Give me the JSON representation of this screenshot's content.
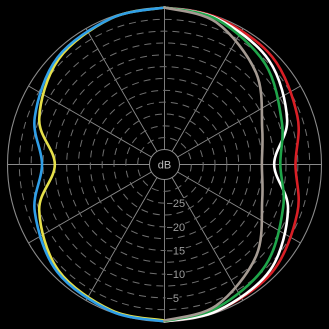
{
  "chart_data": {
    "type": "polar",
    "center_label": "dB",
    "radial_axis": {
      "ticks": [
        -5,
        -10,
        -15,
        -20,
        -25
      ],
      "tick_labels": [
        "−5",
        "−10",
        "−15",
        "−20",
        "−25"
      ],
      "outer_db": 0,
      "inner_db": -30
    },
    "angular_axis": {
      "spoke_step_deg": 30,
      "zero_at": "top",
      "direction": "clockwise"
    },
    "grid": true,
    "series": [
      {
        "side": "left",
        "color": "#e6e04a",
        "points": [
          {
            "angle": 0,
            "db": 0
          },
          {
            "angle": 20,
            "db": -0.3
          },
          {
            "angle": 45,
            "db": -1.6
          },
          {
            "angle": 70,
            "db": -5.0
          },
          {
            "angle": 90,
            "db": -10.0
          },
          {
            "angle": 110,
            "db": -5.0
          },
          {
            "angle": 135,
            "db": -1.5
          },
          {
            "angle": 160,
            "db": -0.4
          },
          {
            "angle": 180,
            "db": -0.2
          }
        ]
      },
      {
        "side": "left",
        "color": "#2f9fe8",
        "points": [
          {
            "angle": 0,
            "db": 0
          },
          {
            "angle": 20,
            "db": -0.3
          },
          {
            "angle": 45,
            "db": -1.2
          },
          {
            "angle": 70,
            "db": -4.0
          },
          {
            "angle": 90,
            "db": -7.3
          },
          {
            "angle": 110,
            "db": -4.0
          },
          {
            "angle": 135,
            "db": -1.1
          },
          {
            "angle": 160,
            "db": -0.2
          },
          {
            "angle": 180,
            "db": 0
          }
        ]
      },
      {
        "side": "right",
        "color": "#d81f26",
        "points": [
          {
            "angle": 0,
            "db": 0
          },
          {
            "angle": 20,
            "db": -0.2
          },
          {
            "angle": 45,
            "db": -1.0
          },
          {
            "angle": 70,
            "db": -3.3
          },
          {
            "angle": 90,
            "db": -5.5
          },
          {
            "angle": 110,
            "db": -3.3
          },
          {
            "angle": 135,
            "db": -1.0
          },
          {
            "angle": 160,
            "db": -0.3
          },
          {
            "angle": 180,
            "db": 0
          }
        ]
      },
      {
        "side": "right",
        "color": "#ffffff",
        "points": [
          {
            "angle": 0,
            "db": 0
          },
          {
            "angle": 20,
            "db": -0.4
          },
          {
            "angle": 45,
            "db": -2.0
          },
          {
            "angle": 70,
            "db": -5.6
          },
          {
            "angle": 90,
            "db": -10.0
          },
          {
            "angle": 110,
            "db": -5.4
          },
          {
            "angle": 135,
            "db": -1.6
          },
          {
            "angle": 160,
            "db": -0.3
          },
          {
            "angle": 180,
            "db": 0
          }
        ]
      },
      {
        "side": "right",
        "color": "#1fa54a",
        "points": [
          {
            "angle": 0,
            "db": 0
          },
          {
            "angle": 20,
            "db": -0.6
          },
          {
            "angle": 45,
            "db": -3.1
          },
          {
            "angle": 70,
            "db": -6.8
          },
          {
            "angle": 90,
            "db": -8.7
          },
          {
            "angle": 110,
            "db": -6.5
          },
          {
            "angle": 135,
            "db": -3.0
          },
          {
            "angle": 160,
            "db": -0.9
          },
          {
            "angle": 180,
            "db": -0.1
          }
        ]
      },
      {
        "side": "right",
        "color": "#a49a92",
        "points": [
          {
            "angle": 0,
            "db": 0
          },
          {
            "angle": 20,
            "db": -1.2
          },
          {
            "angle": 45,
            "db": -5.8
          },
          {
            "angle": 70,
            "db": -11.2
          },
          {
            "angle": 90,
            "db": -12.6
          },
          {
            "angle": 110,
            "db": -11.2
          },
          {
            "angle": 135,
            "db": -5.8
          },
          {
            "angle": 160,
            "db": -1.4
          },
          {
            "angle": 180,
            "db": -0.2
          }
        ]
      }
    ]
  }
}
